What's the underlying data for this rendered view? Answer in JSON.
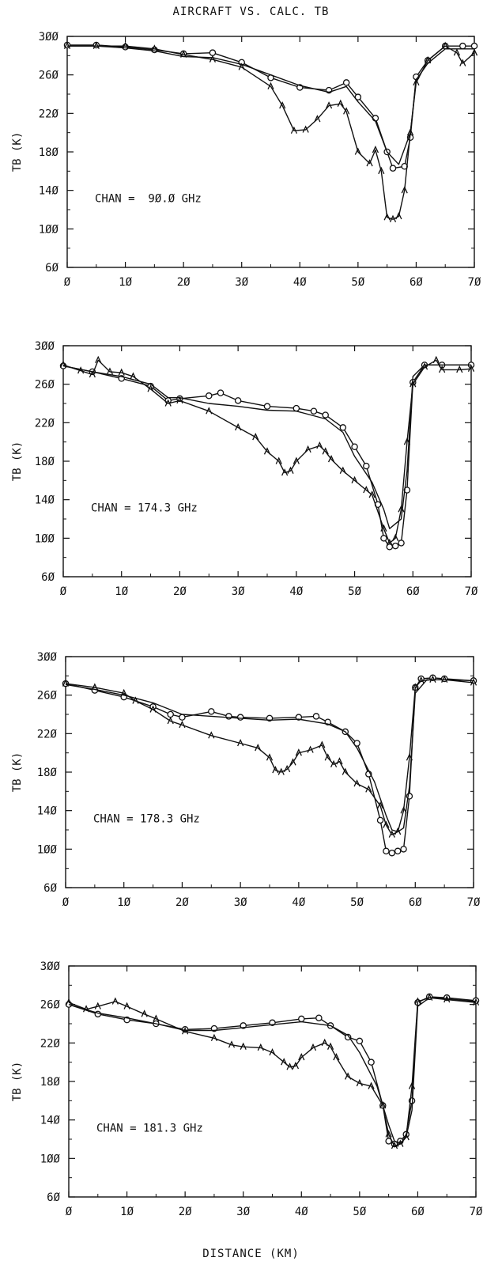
{
  "title": "AIRCRAFT VS. CALC. TB",
  "xlabel": "DISTANCE (KM)",
  "chart_data": [
    {
      "type": "line",
      "annotation": "CHAN =  90.0 GHz",
      "ylabel": "TB (K)",
      "xlim": [
        0,
        70
      ],
      "ylim": [
        60,
        300
      ],
      "xticks": [
        "0",
        "10",
        "20",
        "30",
        "40",
        "50",
        "60",
        "70"
      ],
      "yticks": [
        "60",
        "100",
        "140",
        "180",
        "220",
        "260",
        "300"
      ],
      "series": [
        {
          "marker": "circle",
          "x": [
            0,
            5,
            10,
            15,
            20,
            25,
            30,
            35,
            40,
            45,
            48,
            50,
            53,
            55,
            56,
            58,
            59,
            60,
            62,
            65,
            68,
            70
          ],
          "y": [
            291,
            291,
            289,
            286,
            282,
            283,
            273,
            257,
            247,
            244,
            252,
            237,
            215,
            180,
            163,
            165,
            195,
            258,
            275,
            290,
            290,
            290
          ]
        },
        {
          "marker": "caret",
          "x": [
            0,
            5,
            10,
            15,
            20,
            25,
            30,
            35,
            37,
            39,
            41,
            43,
            45,
            47,
            48,
            50,
            52,
            53,
            54,
            55,
            56,
            57,
            58,
            59,
            60,
            62,
            65,
            67,
            68,
            70
          ],
          "y": [
            290,
            290,
            290,
            287,
            281,
            276,
            268,
            248,
            228,
            202,
            203,
            214,
            228,
            230,
            222,
            180,
            168,
            182,
            160,
            112,
            110,
            113,
            140,
            200,
            252,
            275,
            290,
            283,
            272,
            283
          ]
        },
        {
          "marker": "none",
          "x": [
            0,
            5,
            10,
            15,
            20,
            25,
            30,
            35,
            40,
            45,
            48,
            50,
            53,
            55,
            57,
            59,
            60,
            62,
            65,
            70
          ],
          "y": [
            290,
            290,
            288,
            285,
            279,
            278,
            271,
            260,
            249,
            242,
            248,
            232,
            212,
            180,
            167,
            200,
            255,
            272,
            287,
            287
          ]
        }
      ]
    },
    {
      "type": "line",
      "annotation": "CHAN = 174.3 GHz",
      "ylabel": "TB (K)",
      "xlim": [
        0,
        70
      ],
      "ylim": [
        60,
        300
      ],
      "xticks": [
        "0",
        "10",
        "20",
        "30",
        "40",
        "50",
        "60",
        "70"
      ],
      "yticks": [
        "60",
        "100",
        "140",
        "180",
        "220",
        "260",
        "300"
      ],
      "series": [
        {
          "marker": "circle",
          "x": [
            0,
            5,
            10,
            15,
            18,
            20,
            25,
            27,
            30,
            35,
            40,
            43,
            45,
            48,
            50,
            52,
            54,
            55,
            56,
            57,
            58,
            59,
            60,
            62,
            65,
            70
          ],
          "y": [
            279,
            273,
            266,
            258,
            243,
            245,
            248,
            251,
            243,
            237,
            235,
            232,
            228,
            215,
            195,
            175,
            135,
            100,
            91,
            92,
            95,
            150,
            262,
            280,
            280,
            280
          ]
        },
        {
          "marker": "caret",
          "x": [
            0,
            3,
            5,
            6,
            8,
            10,
            12,
            15,
            18,
            20,
            25,
            30,
            33,
            35,
            37,
            38,
            39,
            40,
            42,
            44,
            45,
            46,
            48,
            50,
            52,
            53,
            55,
            56,
            57,
            58,
            59,
            60,
            62,
            64,
            65,
            68,
            70
          ],
          "y": [
            280,
            274,
            270,
            285,
            273,
            272,
            268,
            255,
            240,
            243,
            232,
            215,
            205,
            190,
            180,
            168,
            170,
            180,
            192,
            196,
            190,
            182,
            170,
            160,
            150,
            145,
            110,
            95,
            100,
            130,
            200,
            260,
            278,
            285,
            275,
            275,
            276
          ]
        },
        {
          "marker": "none",
          "x": [
            0,
            5,
            10,
            15,
            18,
            20,
            25,
            30,
            35,
            40,
            45,
            48,
            50,
            53,
            55,
            56,
            57,
            58,
            59,
            60,
            62,
            65,
            70
          ],
          "y": [
            279,
            273,
            268,
            260,
            246,
            246,
            240,
            237,
            233,
            232,
            224,
            210,
            185,
            158,
            130,
            110,
            115,
            120,
            170,
            268,
            280,
            280,
            280
          ]
        }
      ]
    },
    {
      "type": "line",
      "annotation": "CHAN = 178.3 GHz",
      "ylabel": "TB (K)",
      "xlim": [
        0,
        70
      ],
      "ylim": [
        60,
        300
      ],
      "xticks": [
        "0",
        "10",
        "20",
        "30",
        "40",
        "50",
        "60",
        "70"
      ],
      "yticks": [
        "60",
        "100",
        "140",
        "180",
        "220",
        "260",
        "300"
      ],
      "series": [
        {
          "marker": "circle",
          "x": [
            0,
            5,
            10,
            15,
            18,
            20,
            25,
            28,
            30,
            35,
            40,
            43,
            45,
            48,
            50,
            52,
            54,
            55,
            56,
            57,
            58,
            59,
            60,
            61,
            63,
            65,
            70
          ],
          "y": [
            272,
            265,
            258,
            248,
            240,
            237,
            243,
            238,
            237,
            236,
            237,
            238,
            232,
            222,
            210,
            178,
            130,
            98,
            96,
            98,
            100,
            155,
            268,
            277,
            278,
            277,
            275
          ]
        },
        {
          "marker": "caret",
          "x": [
            0,
            5,
            10,
            12,
            15,
            18,
            20,
            25,
            30,
            33,
            35,
            36,
            37,
            38,
            39,
            40,
            42,
            44,
            45,
            46,
            47,
            48,
            50,
            52,
            54,
            55,
            56,
            57,
            58,
            59,
            60,
            61,
            63,
            65,
            70
          ],
          "y": [
            272,
            268,
            262,
            254,
            245,
            233,
            229,
            218,
            210,
            205,
            195,
            182,
            180,
            183,
            190,
            200,
            203,
            208,
            195,
            188,
            191,
            180,
            168,
            162,
            145,
            125,
            115,
            118,
            140,
            195,
            268,
            275,
            276,
            276,
            273
          ]
        },
        {
          "marker": "none",
          "x": [
            0,
            5,
            10,
            15,
            20,
            25,
            30,
            35,
            40,
            45,
            48,
            50,
            53,
            55,
            56,
            57,
            58,
            59,
            60,
            62,
            65,
            70
          ],
          "y": [
            271,
            266,
            260,
            252,
            240,
            238,
            236,
            234,
            235,
            230,
            222,
            205,
            170,
            135,
            120,
            118,
            122,
            165,
            262,
            276,
            276,
            275
          ]
        }
      ]
    },
    {
      "type": "line",
      "annotation": "CHAN = 181.3 GHz",
      "ylabel": "TB (K)",
      "xlim": [
        0,
        70
      ],
      "ylim": [
        60,
        300
      ],
      "xticks": [
        "0",
        "10",
        "20",
        "30",
        "40",
        "50",
        "60",
        "70"
      ],
      "yticks": [
        "60",
        "100",
        "140",
        "180",
        "220",
        "260",
        "300"
      ],
      "series": [
        {
          "marker": "circle",
          "x": [
            0,
            5,
            10,
            15,
            20,
            25,
            30,
            35,
            40,
            43,
            45,
            48,
            50,
            52,
            54,
            55,
            56,
            57,
            58,
            59,
            60,
            62,
            65,
            70
          ],
          "y": [
            260,
            250,
            244,
            240,
            234,
            235,
            238,
            241,
            245,
            246,
            238,
            226,
            222,
            200,
            155,
            118,
            115,
            118,
            125,
            160,
            262,
            268,
            267,
            264
          ]
        },
        {
          "marker": "caret",
          "x": [
            0,
            3,
            5,
            8,
            10,
            13,
            15,
            20,
            25,
            28,
            30,
            33,
            35,
            37,
            38,
            39,
            40,
            42,
            44,
            45,
            46,
            48,
            50,
            52,
            54,
            55,
            56,
            57,
            58,
            59,
            60,
            62,
            65,
            70
          ],
          "y": [
            262,
            255,
            258,
            263,
            258,
            250,
            245,
            232,
            225,
            218,
            216,
            215,
            210,
            200,
            195,
            196,
            205,
            215,
            220,
            216,
            205,
            185,
            178,
            175,
            155,
            125,
            113,
            115,
            122,
            175,
            263,
            267,
            265,
            262
          ]
        },
        {
          "marker": "none",
          "x": [
            0,
            5,
            10,
            15,
            20,
            25,
            30,
            35,
            40,
            45,
            48,
            50,
            53,
            55,
            56,
            57,
            58,
            59,
            60,
            62,
            65,
            70
          ],
          "y": [
            260,
            251,
            246,
            240,
            233,
            233,
            236,
            239,
            242,
            238,
            228,
            210,
            175,
            135,
            118,
            116,
            122,
            150,
            258,
            267,
            266,
            263
          ]
        }
      ]
    }
  ]
}
